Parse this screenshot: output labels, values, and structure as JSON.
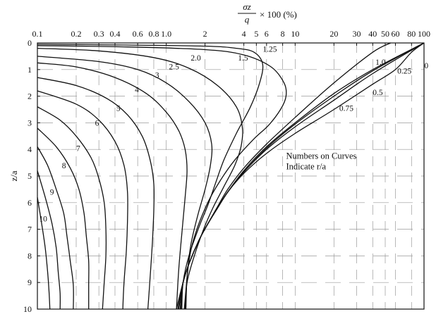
{
  "chart_data": {
    "type": "line",
    "title": "",
    "xlabel": {
      "numerator": "σz",
      "denominator": "q",
      "suffix": "× 100 (%)"
    },
    "ylabel": "z/a",
    "x_scale": "log",
    "xlim": [
      0.1,
      100
    ],
    "ylim": [
      0,
      10
    ],
    "y_inverted": true,
    "x_axis_position": "top",
    "grid": true,
    "x_tick_labels": [
      "0.1",
      "0.2",
      "0.3",
      "0.4",
      "0.6",
      "0.8",
      "1.0",
      "2",
      "4",
      "5",
      "6",
      "8",
      "10",
      "20",
      "30",
      "40",
      "50",
      "60",
      "80",
      "100"
    ],
    "y_tick_labels": [
      "0",
      "1",
      "2",
      "3",
      "4",
      "5",
      "6",
      "7",
      "8",
      "9",
      "10"
    ],
    "annotation": [
      "Numbers on Curves",
      "Indicate r/a"
    ],
    "series": [
      {
        "name": "0",
        "x": [
          100,
          40,
          20,
          10,
          6,
          4,
          3,
          2.5,
          2.1,
          1.8,
          1.5,
          1.35,
          1.2
        ],
        "y": [
          0,
          1.0,
          1.9,
          3.0,
          3.9,
          4.8,
          5.6,
          6.2,
          6.8,
          7.4,
          8.3,
          9.0,
          10
        ]
      },
      {
        "name": "0.25",
        "x": [
          100,
          40,
          20,
          10,
          6,
          4,
          3,
          2.5,
          2.1,
          1.8,
          1.5,
          1.35,
          1.23
        ],
        "y": [
          0,
          1.05,
          2.0,
          3.05,
          3.95,
          4.85,
          5.6,
          6.2,
          6.8,
          7.4,
          8.3,
          9.0,
          10
        ]
      },
      {
        "name": "0.5",
        "x": [
          100,
          40,
          20,
          10,
          6,
          4,
          3,
          2.5,
          2.1,
          1.8,
          1.5,
          1.35,
          1.25
        ],
        "y": [
          0,
          1.15,
          2.15,
          3.15,
          4.0,
          4.85,
          5.6,
          6.2,
          6.8,
          7.4,
          8.3,
          9.0,
          10
        ]
      },
      {
        "name": "0.75",
        "x": [
          100,
          80,
          60,
          40,
          20,
          10,
          6,
          4,
          3,
          2.5,
          2.1,
          1.8,
          1.5,
          1.35,
          1.28
        ],
        "y": [
          0,
          0.35,
          1.0,
          1.55,
          2.5,
          3.4,
          4.15,
          4.9,
          5.6,
          6.2,
          6.8,
          7.4,
          8.3,
          9.0,
          10
        ]
      },
      {
        "name": "1.0",
        "x": [
          55,
          40,
          20,
          10,
          6,
          4,
          3,
          2.5,
          2.1,
          1.8,
          1.5,
          1.35,
          1.3
        ],
        "y": [
          0,
          0.35,
          1.5,
          2.8,
          3.8,
          4.7,
          5.5,
          6.15,
          6.8,
          7.4,
          8.3,
          9.0,
          10
        ]
      },
      {
        "name": "1.25",
        "x": [
          0.1,
          0.5,
          2,
          3.5,
          4.8,
          5.6,
          5.3,
          4.5,
          3.5,
          2.8,
          2.4,
          2.1,
          1.8,
          1.5,
          1.35,
          1.32
        ],
        "y": [
          0.05,
          0.08,
          0.12,
          0.2,
          0.35,
          0.8,
          1.5,
          2.4,
          3.4,
          4.4,
          5.3,
          6.1,
          6.9,
          8.0,
          9.0,
          10
        ]
      },
      {
        "name": "1.5",
        "x": [
          0.1,
          0.5,
          2,
          4,
          6.5,
          8.2,
          8.5,
          7.7,
          6.2,
          4.8,
          3.4,
          2.6,
          2.1,
          1.7,
          1.5,
          1.38
        ],
        "y": [
          0.1,
          0.15,
          0.25,
          0.45,
          0.9,
          1.5,
          2.0,
          2.5,
          3.1,
          3.6,
          4.4,
          5.2,
          6.0,
          7.1,
          8.2,
          10
        ]
      },
      {
        "name": "2.0",
        "x": [
          0.1,
          0.3,
          0.8,
          1.5,
          2.5,
          3.5,
          3.9,
          3.8,
          3.4,
          2.8,
          2.3,
          1.95,
          1.65,
          1.45,
          1.4
        ],
        "y": [
          0.2,
          0.3,
          0.55,
          0.95,
          1.6,
          2.4,
          3.2,
          3.9,
          4.6,
          5.4,
          6.2,
          7.0,
          8.0,
          9.0,
          10
        ]
      },
      {
        "name": "2.5",
        "x": [
          0.1,
          0.3,
          0.6,
          1.0,
          1.5,
          2.0,
          2.25,
          2.2,
          2.0,
          1.75,
          1.55,
          1.45,
          1.42
        ],
        "y": [
          0.5,
          0.7,
          1.0,
          1.5,
          2.2,
          3.0,
          3.8,
          4.6,
          5.5,
          6.5,
          7.6,
          8.8,
          10
        ]
      },
      {
        "name": "3",
        "x": [
          0.1,
          0.2,
          0.4,
          0.7,
          1.0,
          1.25,
          1.4,
          1.45,
          1.4,
          1.33,
          1.25,
          1.2
        ],
        "y": [
          0.75,
          0.9,
          1.3,
          1.9,
          2.6,
          3.3,
          4.0,
          4.8,
          5.8,
          7.0,
          8.5,
          10
        ]
      },
      {
        "name": "4",
        "x": [
          0.1,
          0.2,
          0.35,
          0.5,
          0.65,
          0.75,
          0.8,
          0.8,
          0.78,
          0.75,
          0.72
        ],
        "y": [
          1.3,
          1.6,
          2.1,
          2.7,
          3.5,
          4.4,
          5.3,
          6.3,
          7.5,
          8.8,
          10
        ]
      },
      {
        "name": "5",
        "x": [
          0.1,
          0.2,
          0.3,
          0.4,
          0.47,
          0.5,
          0.5,
          0.49,
          0.47,
          0.46
        ],
        "y": [
          1.8,
          2.3,
          2.9,
          3.7,
          4.6,
          5.6,
          6.7,
          7.8,
          9.0,
          10
        ]
      },
      {
        "name": "6",
        "x": [
          0.1,
          0.15,
          0.2,
          0.26,
          0.3,
          0.33,
          0.34,
          0.34,
          0.33,
          0.32
        ],
        "y": [
          2.4,
          2.9,
          3.5,
          4.3,
          5.1,
          6.0,
          7.0,
          8.0,
          9.0,
          10
        ]
      },
      {
        "name": "7",
        "x": [
          0.1,
          0.14,
          0.18,
          0.21,
          0.23,
          0.24,
          0.25,
          0.25,
          0.25
        ],
        "y": [
          3.2,
          3.9,
          4.7,
          5.5,
          6.4,
          7.3,
          8.2,
          9.1,
          10
        ]
      },
      {
        "name": "8",
        "x": [
          0.1,
          0.12,
          0.14,
          0.16,
          0.17,
          0.18,
          0.19,
          0.19
        ],
        "y": [
          3.9,
          4.6,
          5.5,
          6.4,
          7.3,
          8.2,
          9.1,
          10
        ]
      },
      {
        "name": "9",
        "x": [
          0.1,
          0.115,
          0.13,
          0.14,
          0.145,
          0.15,
          0.15
        ],
        "y": [
          4.8,
          5.8,
          6.8,
          7.7,
          8.6,
          9.4,
          10
        ]
      },
      {
        "name": "10",
        "x": [
          0.1,
          0.108,
          0.115,
          0.12,
          0.123,
          0.125
        ],
        "y": [
          5.8,
          6.8,
          7.7,
          8.6,
          9.3,
          10
        ]
      }
    ]
  }
}
